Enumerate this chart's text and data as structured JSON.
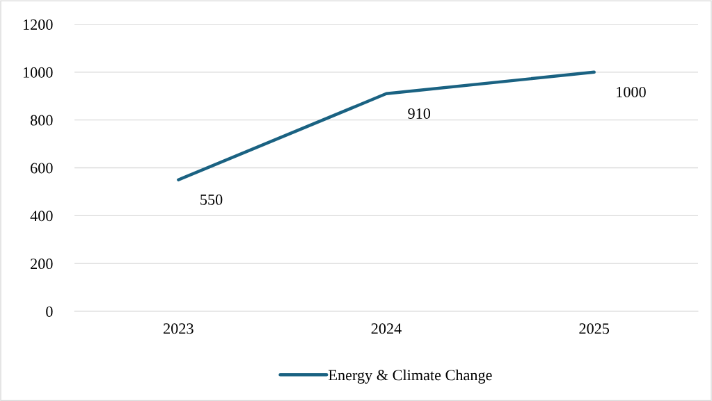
{
  "chart_data": {
    "type": "line",
    "categories": [
      "2023",
      "2024",
      "2025"
    ],
    "series": [
      {
        "name": "Energy & Climate Change",
        "color": "#1a6282",
        "values": [
          550,
          910,
          1000
        ]
      }
    ],
    "ylim": [
      0,
      1200
    ],
    "yticks": [
      0,
      200,
      400,
      600,
      800,
      1000,
      1200
    ],
    "grid": "y",
    "legend": "bottom",
    "data_labels": true,
    "marker": "none",
    "line_style": "solid"
  }
}
